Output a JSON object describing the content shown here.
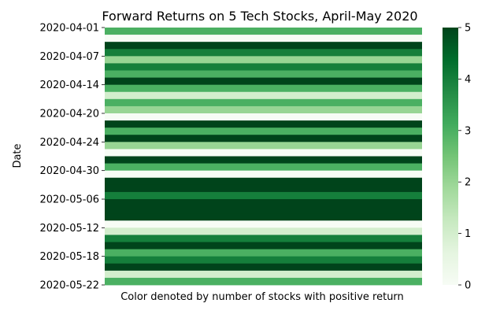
{
  "chart_data": {
    "type": "heatmap",
    "title": "Forward Returns on 5 Tech Stocks, April-May 2020",
    "xlabel": "Color denoted by number of stocks with positive return",
    "ylabel": "Date",
    "colormap": "Greens",
    "colors": {
      "low": "#f7fcf5",
      "high": "#00441b"
    },
    "vmin": 0,
    "vmax": 5,
    "rows": [
      {
        "date": "2020-04-01",
        "value": 3
      },
      {
        "date": "2020-04-02",
        "value": 0
      },
      {
        "date": "2020-04-03",
        "value": 5
      },
      {
        "date": "2020-04-06",
        "value": 4
      },
      {
        "date": "2020-04-07",
        "value": 2
      },
      {
        "date": "2020-04-08",
        "value": 4
      },
      {
        "date": "2020-04-09",
        "value": 3
      },
      {
        "date": "2020-04-13",
        "value": 5
      },
      {
        "date": "2020-04-14",
        "value": 3
      },
      {
        "date": "2020-04-15",
        "value": 1
      },
      {
        "date": "2020-04-16",
        "value": 3
      },
      {
        "date": "2020-04-17",
        "value": 2
      },
      {
        "date": "2020-04-20",
        "value": 0
      },
      {
        "date": "2020-04-21",
        "value": 5
      },
      {
        "date": "2020-04-22",
        "value": 3
      },
      {
        "date": "2020-04-23",
        "value": 5
      },
      {
        "date": "2020-04-24",
        "value": 2
      },
      {
        "date": "2020-04-27",
        "value": 0
      },
      {
        "date": "2020-04-28",
        "value": 5
      },
      {
        "date": "2020-04-29",
        "value": 3
      },
      {
        "date": "2020-04-30",
        "value": 0
      },
      {
        "date": "2020-05-01",
        "value": 5
      },
      {
        "date": "2020-05-04",
        "value": 5
      },
      {
        "date": "2020-05-05",
        "value": 4
      },
      {
        "date": "2020-05-06",
        "value": 5
      },
      {
        "date": "2020-05-07",
        "value": 5
      },
      {
        "date": "2020-05-08",
        "value": 5
      },
      {
        "date": "2020-05-11",
        "value": 0
      },
      {
        "date": "2020-05-12",
        "value": 1
      },
      {
        "date": "2020-05-13",
        "value": 4
      },
      {
        "date": "2020-05-14",
        "value": 5
      },
      {
        "date": "2020-05-15",
        "value": 3
      },
      {
        "date": "2020-05-18",
        "value": 4
      },
      {
        "date": "2020-05-19",
        "value": 5
      },
      {
        "date": "2020-05-20",
        "value": 1
      },
      {
        "date": "2020-05-21",
        "value": 3
      }
    ],
    "ytick_labels": [
      "2020-04-01",
      "2020-04-07",
      "2020-04-14",
      "2020-04-20",
      "2020-04-24",
      "2020-04-30",
      "2020-05-06",
      "2020-05-12",
      "2020-05-18",
      "2020-05-22"
    ],
    "colorbar_ticks": [
      0,
      1,
      2,
      3,
      4,
      5
    ]
  }
}
